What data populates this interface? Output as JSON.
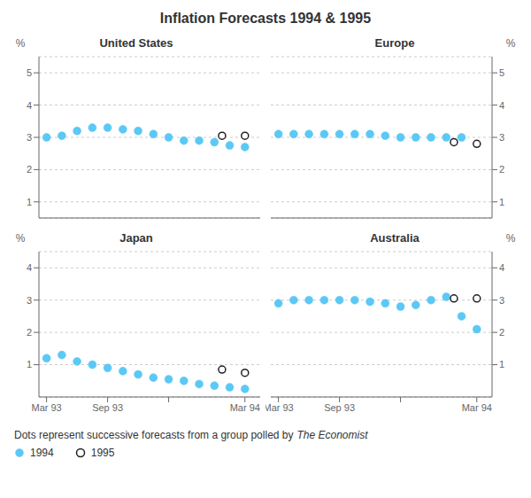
{
  "title": "Inflation Forecasts 1994 & 1995",
  "annotations": [
    "Dots represent successive forecasts from a group polled by",
    "The Economist"
  ],
  "legend": "bottom",
  "chart_data": [
    {
      "type": "scatter",
      "title": "United States",
      "ylabel": "%",
      "xlim": [
        -0.5,
        14.0
      ],
      "ylim": [
        0.5,
        5.5
      ],
      "yticks": [
        1,
        2,
        3,
        4,
        5
      ],
      "grid": "y",
      "tick_labels": "y",
      "series": [
        {
          "name": "1994",
          "color": "#5bc8f5",
          "marker": "circle",
          "x": [
            0,
            1,
            2,
            3,
            4,
            5,
            6,
            7,
            8,
            9,
            10,
            11,
            12,
            13
          ],
          "values": [
            3.0,
            3.05,
            3.2,
            3.3,
            3.3,
            3.25,
            3.2,
            3.1,
            3.0,
            2.9,
            2.9,
            2.85,
            2.75,
            2.7
          ]
        },
        {
          "name": "1995",
          "color": "#222222",
          "marker": "open_circle",
          "x": [
            11.5,
            13.0
          ],
          "values": [
            3.05,
            3.05
          ]
        }
      ]
    },
    {
      "type": "scatter",
      "title": "Europe",
      "ylabel": "%",
      "xlim": [
        -0.5,
        14.0
      ],
      "ylim": [
        0.5,
        5.5
      ],
      "yticks": [
        1,
        2,
        3,
        4,
        5
      ],
      "grid": "y",
      "tick_labels": "y",
      "series": [
        {
          "name": "1994",
          "color": "#5bc8f5",
          "marker": "circle",
          "x": [
            0,
            1,
            2,
            3,
            4,
            5,
            6,
            7,
            8,
            9,
            10,
            11,
            12
          ],
          "values": [
            3.1,
            3.1,
            3.1,
            3.1,
            3.1,
            3.1,
            3.1,
            3.05,
            3.0,
            3.0,
            3.0,
            3.0,
            3.0
          ]
        },
        {
          "name": "1995",
          "color": "#222222",
          "marker": "open_circle",
          "x": [
            11.5,
            13.0
          ],
          "values": [
            2.85,
            2.8
          ]
        }
      ]
    },
    {
      "type": "scatter",
      "title": "Japan",
      "ylabel": "%",
      "xlim": [
        -0.5,
        14.0
      ],
      "ylim": [
        0.0,
        4.5
      ],
      "xticks": [
        {
          "value": 0,
          "label": "Mar 93"
        },
        {
          "value": 4,
          "label": "Sep 93"
        },
        {
          "value": 8,
          "label": null
        },
        {
          "value": 13,
          "label": "Mar 94"
        }
      ],
      "yticks": [
        1,
        2,
        3,
        4
      ],
      "grid": "y",
      "series": [
        {
          "name": "1994",
          "color": "#5bc8f5",
          "marker": "circle",
          "x": [
            0,
            1,
            2,
            3,
            4,
            5,
            6,
            7,
            8,
            9,
            10,
            11,
            12,
            13
          ],
          "values": [
            1.2,
            1.3,
            1.1,
            1.0,
            0.9,
            0.8,
            0.7,
            0.6,
            0.55,
            0.5,
            0.4,
            0.35,
            0.3,
            0.25
          ]
        },
        {
          "name": "1995",
          "color": "#222222",
          "marker": "open_circle",
          "x": [
            11.5,
            13.0
          ],
          "values": [
            0.85,
            0.75
          ]
        }
      ]
    },
    {
      "type": "scatter",
      "title": "Australia",
      "ylabel": "%",
      "xlim": [
        -0.5,
        14.0
      ],
      "ylim": [
        0.0,
        4.5
      ],
      "xticks": [
        {
          "value": 0,
          "label": "Mar 93"
        },
        {
          "value": 4,
          "label": "Sep 93"
        },
        {
          "value": 8,
          "label": null
        },
        {
          "value": 13,
          "label": "Mar 94"
        }
      ],
      "yticks": [
        1,
        2,
        3,
        4
      ],
      "grid": "y",
      "series": [
        {
          "name": "1994",
          "color": "#5bc8f5",
          "marker": "circle",
          "x": [
            0,
            1,
            2,
            3,
            4,
            5,
            6,
            7,
            8,
            9,
            10,
            11,
            12,
            13
          ],
          "values": [
            2.9,
            3.0,
            3.0,
            3.0,
            3.0,
            3.0,
            2.95,
            2.9,
            2.8,
            2.85,
            3.0,
            3.1,
            2.5,
            2.1
          ]
        },
        {
          "name": "1995",
          "color": "#222222",
          "marker": "open_circle",
          "x": [
            11.5,
            13.0
          ],
          "values": [
            3.05,
            3.05
          ]
        }
      ]
    }
  ]
}
